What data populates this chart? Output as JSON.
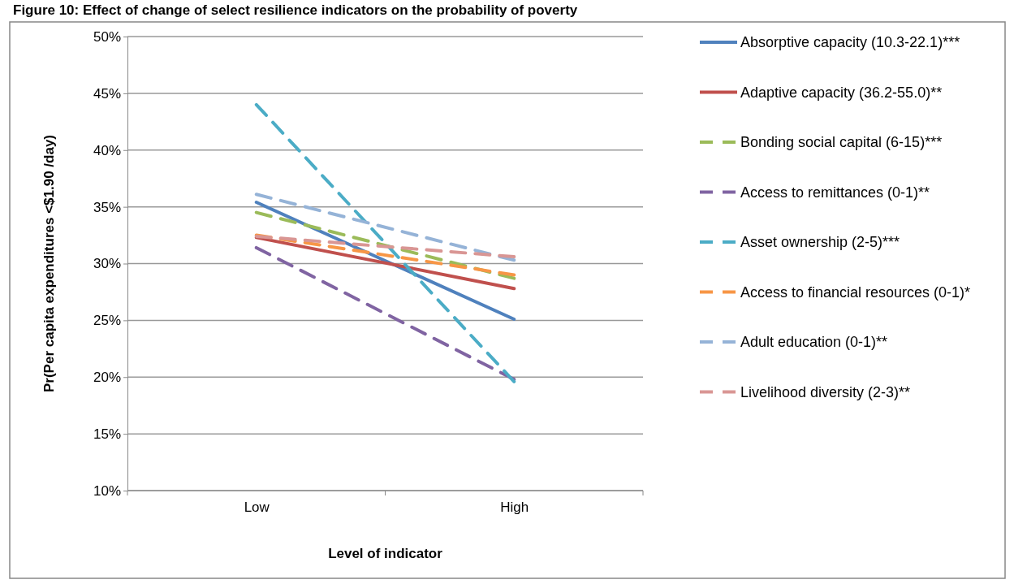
{
  "chart_data": {
    "type": "line",
    "title": "Figure 10: Effect of change of select resilience indicators on the probability of poverty",
    "xlabel": "Level of indicator",
    "ylabel": "Pr(Per capita expenditures <$1.90 /day)",
    "categories": [
      "Low",
      "High"
    ],
    "ylim": [
      0.1,
      0.5
    ],
    "yticks": [
      {
        "value": 0.1,
        "label": "10%"
      },
      {
        "value": 0.15,
        "label": "15%"
      },
      {
        "value": 0.2,
        "label": "20%"
      },
      {
        "value": 0.25,
        "label": "25%"
      },
      {
        "value": 0.3,
        "label": "30%"
      },
      {
        "value": 0.35,
        "label": "35%"
      },
      {
        "value": 0.4,
        "label": "40%"
      },
      {
        "value": 0.45,
        "label": "45%"
      },
      {
        "value": 0.5,
        "label": "50%"
      }
    ],
    "grid": "y",
    "legend": "right",
    "marker": "none",
    "series": [
      {
        "name": "Absorptive capacity (10.3-22.1)***",
        "color": "#4f81bd",
        "values": [
          0.354,
          0.251
        ],
        "line_style": "solid"
      },
      {
        "name": "Adaptive capacity (36.2-55.0)**",
        "color": "#c0504d",
        "values": [
          0.323,
          0.278
        ],
        "line_style": "solid"
      },
      {
        "name": "Bonding social capital (6-15)***",
        "color": "#9bbb59",
        "values": [
          0.345,
          0.287
        ],
        "line_style": "dashed"
      },
      {
        "name": "Access to remittances (0-1)**",
        "color": "#8064a2",
        "values": [
          0.314,
          0.198
        ],
        "line_style": "dashed"
      },
      {
        "name": "Asset ownership (2-5)***",
        "color": "#4bacc6",
        "values": [
          0.44,
          0.196
        ],
        "line_style": "dashed"
      },
      {
        "name": "Access to financial resources (0-1)*",
        "color": "#f79646",
        "values": [
          0.325,
          0.29
        ],
        "line_style": "dashed"
      },
      {
        "name": "Adult education (0-1)**",
        "color": "#95b3d7",
        "values": [
          0.361,
          0.303
        ],
        "line_style": "dashed"
      },
      {
        "name": "Livelihood diversity (2-3)**",
        "color": "#d99694",
        "values": [
          0.324,
          0.306
        ],
        "line_style": "dashed"
      }
    ]
  }
}
